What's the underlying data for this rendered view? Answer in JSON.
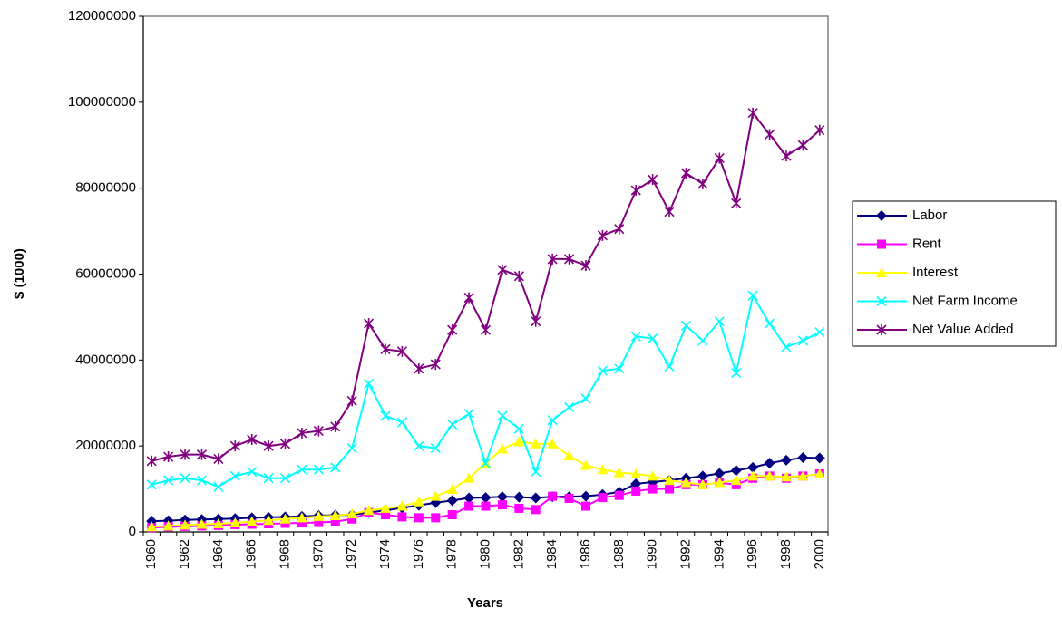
{
  "chart_data": {
    "type": "line",
    "x_label": "Years",
    "y_label": "$ (1000)",
    "categories": [
      "1960",
      null,
      "1962",
      null,
      "1964",
      null,
      "1966",
      null,
      "1968",
      null,
      "1970",
      null,
      "1972",
      null,
      "1974",
      null,
      "1976",
      null,
      "1978",
      null,
      "1980",
      null,
      "1982",
      null,
      "1984",
      null,
      "1986",
      null,
      "1988",
      null,
      "1990",
      null,
      "1992",
      null,
      "1994",
      null,
      "1996",
      null,
      "1998",
      null,
      "2000"
    ],
    "ylim": [
      0,
      120000000
    ],
    "yticks": [
      0,
      20000000,
      40000000,
      60000000,
      80000000,
      100000000,
      120000000
    ],
    "grid": false,
    "legend": "right",
    "series": [
      {
        "name": "Labor",
        "color": "#000080",
        "marker": "diamond",
        "values": [
          2500000,
          2600000,
          2800000,
          2900000,
          3000000,
          3100000,
          3300000,
          3400000,
          3500000,
          3600000,
          3800000,
          3900000,
          4000000,
          4500000,
          5000000,
          5600000,
          6200000,
          6800000,
          7300000,
          7900000,
          8000000,
          8200000,
          8100000,
          7900000,
          8200000,
          8200000,
          8300000,
          8700000,
          9300000,
          11200000,
          11600000,
          12000000,
          12500000,
          13000000,
          13600000,
          14300000,
          15000000,
          16000000,
          16700000,
          17300000,
          17200000
        ]
      },
      {
        "name": "Rent",
        "color": "#ff00ff",
        "marker": "square",
        "values": [
          1000000,
          1200000,
          1300000,
          1400000,
          1500000,
          1700000,
          1800000,
          1900000,
          2000000,
          2100000,
          2200000,
          2400000,
          3000000,
          4500000,
          4000000,
          3500000,
          3300000,
          3300000,
          4000000,
          6000000,
          6000000,
          6300000,
          5500000,
          5200000,
          8300000,
          7800000,
          6000000,
          8000000,
          8500000,
          9500000,
          10000000,
          10000000,
          11000000,
          11000000,
          11500000,
          11000000,
          12500000,
          13000000,
          12500000,
          13000000,
          13500000
        ]
      },
      {
        "name": "Interest",
        "color": "#ffff00",
        "marker": "triangle",
        "values": [
          1200000,
          1400000,
          1600000,
          1800000,
          1900000,
          2100000,
          2400000,
          2700000,
          3000000,
          3300000,
          3600000,
          3800000,
          4200000,
          5000000,
          5500000,
          6000000,
          7000000,
          8300000,
          9900000,
          12500000,
          16000000,
          19300000,
          21000000,
          20500000,
          20500000,
          17700000,
          15500000,
          14500000,
          13800000,
          13500000,
          13000000,
          12000000,
          11500000,
          11000000,
          11500000,
          12000000,
          13000000,
          13000000,
          12800000,
          13000000,
          13500000
        ]
      },
      {
        "name": "Net Farm Income",
        "color": "#00ffff",
        "marker": "x",
        "values": [
          11000000,
          12000000,
          12500000,
          12000000,
          10500000,
          13000000,
          14000000,
          12500000,
          12500000,
          14500000,
          14500000,
          15000000,
          19500000,
          34500000,
          27000000,
          25500000,
          20000000,
          19500000,
          25000000,
          27500000,
          16000000,
          27000000,
          24000000,
          14000000,
          26000000,
          29000000,
          31000000,
          37500000,
          38000000,
          45500000,
          45000000,
          38500000,
          48000000,
          44500000,
          49000000,
          37000000,
          55000000,
          48500000,
          43000000,
          44500000,
          46500000
        ]
      },
      {
        "name": "Net Value Added",
        "color": "#800080",
        "marker": "asterisk",
        "values": [
          16500000,
          17500000,
          18000000,
          18000000,
          17000000,
          20000000,
          21500000,
          20000000,
          20500000,
          23000000,
          23500000,
          24500000,
          30500000,
          48500000,
          42500000,
          42000000,
          38000000,
          39000000,
          47000000,
          54500000,
          47000000,
          61000000,
          59500000,
          49000000,
          63500000,
          63500000,
          62000000,
          69000000,
          70500000,
          79500000,
          82000000,
          74500000,
          83500000,
          81000000,
          87000000,
          76500000,
          97500000,
          92500000,
          87500000,
          90000000,
          93500000
        ]
      }
    ]
  }
}
